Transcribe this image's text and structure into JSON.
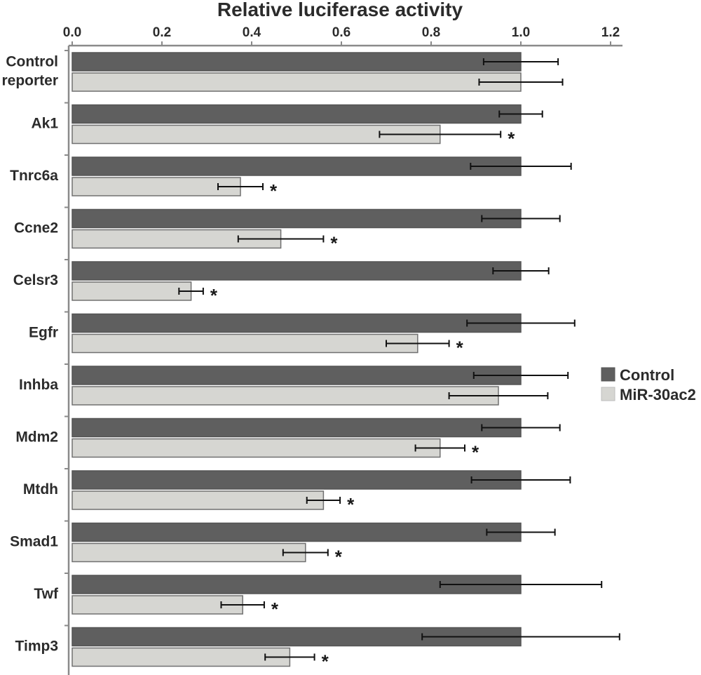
{
  "chart_data": {
    "type": "bar",
    "orientation": "horizontal",
    "title": "Relative luciferase activity",
    "xlim": [
      0,
      1.2
    ],
    "xticks": [
      "0.0",
      "0.2",
      "0.4",
      "0.6",
      "0.8",
      "1.0",
      "1.2"
    ],
    "categories": [
      [
        "Control",
        "reporter"
      ],
      [
        "Ak1"
      ],
      [
        "Tnrc6a"
      ],
      [
        "Ccne2"
      ],
      [
        "Celsr3"
      ],
      [
        "Egfr"
      ],
      [
        "Inhba"
      ],
      [
        "Mdm2"
      ],
      [
        "Mtdh"
      ],
      [
        "Smad1"
      ],
      [
        "Twf"
      ],
      [
        "Timp3"
      ]
    ],
    "series": [
      {
        "name": "Control",
        "color": "#5f5f5f",
        "values": [
          1.0,
          1.0,
          1.0,
          1.0,
          1.0,
          1.0,
          1.0,
          1.0,
          1.0,
          1.0,
          1.0,
          1.0
        ],
        "errors": [
          0.083,
          0.048,
          0.112,
          0.087,
          0.062,
          0.12,
          0.105,
          0.087,
          0.11,
          0.076,
          0.18,
          0.22
        ]
      },
      {
        "name": "MiR-30ac2",
        "color": "#d6d6d2",
        "values": [
          1.0,
          0.82,
          0.375,
          0.465,
          0.265,
          0.77,
          0.95,
          0.82,
          0.56,
          0.52,
          0.38,
          0.485
        ],
        "errors": [
          0.093,
          0.135,
          0.05,
          0.095,
          0.027,
          0.07,
          0.11,
          0.055,
          0.037,
          0.05,
          0.048,
          0.055
        ],
        "significant": [
          false,
          true,
          true,
          true,
          true,
          true,
          false,
          true,
          true,
          true,
          true,
          true
        ]
      }
    ],
    "significance_marker": "*",
    "legend_position": "right",
    "grid": false
  }
}
